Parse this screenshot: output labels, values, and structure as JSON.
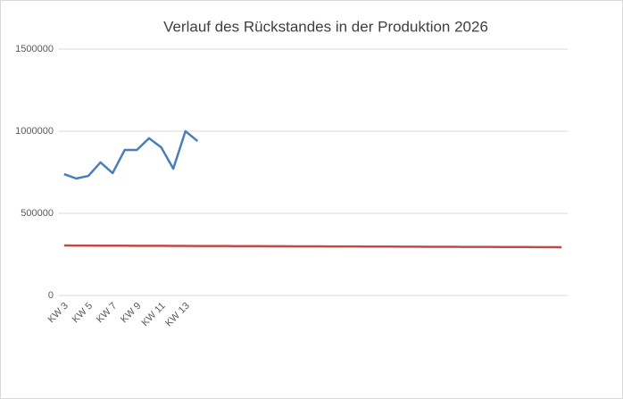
{
  "chart_data": {
    "type": "line",
    "title": "Verlauf des Rückstandes in der Produktion 2026",
    "categories": [
      "KW 3",
      null,
      "KW 5",
      null,
      "KW 7",
      null,
      "KW 9",
      null,
      "KW 11",
      null,
      "KW 13",
      null,
      null,
      null,
      null,
      null,
      null,
      null,
      null,
      null,
      null,
      null,
      null,
      null,
      null,
      null,
      null,
      null,
      null,
      null,
      null,
      null,
      null,
      null,
      null,
      null,
      null,
      null,
      null,
      null,
      null,
      null
    ],
    "series": [
      {
        "color": "#4a7ebb",
        "values": [
          739000,
          712000,
          728000,
          810000,
          745000,
          886000,
          886000,
          957000,
          902000,
          772000,
          1000000,
          940000,
          null,
          null,
          null,
          null,
          null,
          null,
          null,
          null,
          null,
          null,
          null,
          null,
          null,
          null,
          null,
          null,
          null,
          null,
          null,
          null,
          null,
          null,
          null,
          null,
          null,
          null,
          null,
          null,
          null,
          null
        ]
      },
      {
        "color": "#be4b48",
        "values": [
          304000,
          303750,
          303500,
          303250,
          303000,
          302750,
          302500,
          302250,
          302000,
          301750,
          301500,
          301250,
          301000,
          300750,
          300500,
          300250,
          300000,
          299750,
          299500,
          299250,
          299000,
          298750,
          298500,
          298250,
          298000,
          297750,
          297500,
          297250,
          297000,
          296750,
          296500,
          296250,
          296000,
          295750,
          295500,
          295250,
          295000,
          294750,
          294500,
          294250,
          294000,
          293750
        ]
      }
    ],
    "ylim": [
      0,
      1500000
    ],
    "yticks": [
      0,
      500000,
      1000000,
      1500000
    ],
    "grid": true
  }
}
